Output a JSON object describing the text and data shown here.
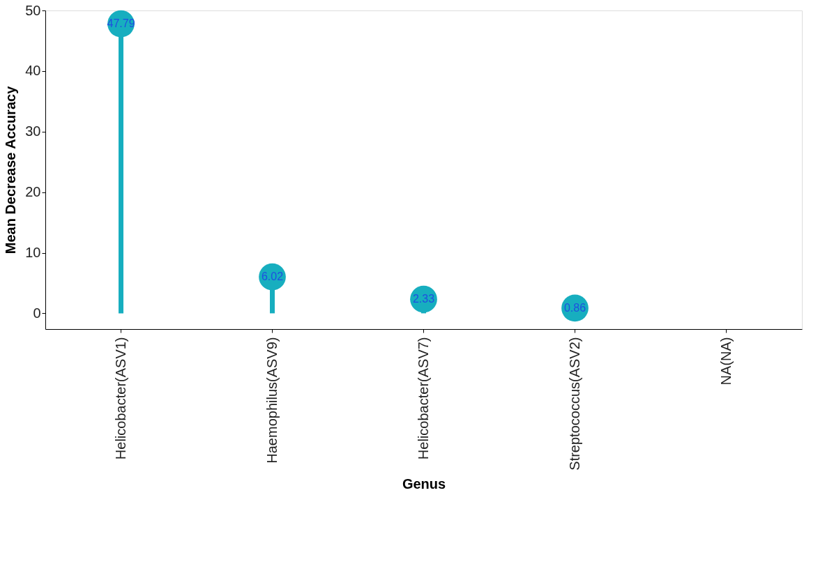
{
  "chart_data": {
    "type": "lollipop",
    "xlabel": "Genus",
    "ylabel": "Mean Decrease Accuracy",
    "categories": [
      "Helicobacter(ASV1)",
      "Haemophilus(ASV9)",
      "Helicobacter(ASV7)",
      "Streptococcus(ASV2)",
      "NA(NA)"
    ],
    "values": [
      47.79,
      6.02,
      2.33,
      0.86,
      null
    ],
    "color": "#17aebf",
    "data_labels": true,
    "marker": "circle",
    "ylim": [
      -2.6,
      50
    ],
    "yticks": [
      0,
      10,
      20,
      30,
      40,
      50
    ],
    "grid": false
  }
}
